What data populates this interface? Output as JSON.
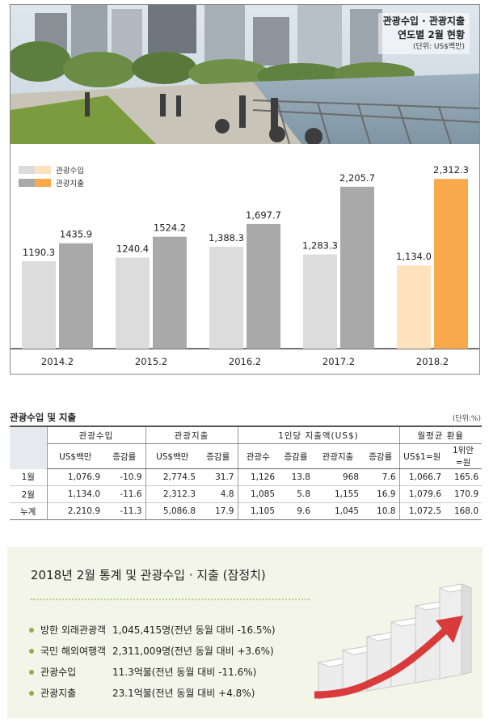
{
  "chart_panel": {
    "title_line1": "관광수입 · 관광지출",
    "title_line2": "연도별 2월 현황",
    "unit": "(단위: US$백만)"
  },
  "chart_data": {
    "type": "bar",
    "title": "관광수입 · 관광지출 연도별 2월 현황",
    "unit": "(단위: US$백만)",
    "categories": [
      "2014.2",
      "2015.2",
      "2016.2",
      "2017.2",
      "2018.2"
    ],
    "series": [
      {
        "name": "관광수입",
        "values": [
          1190.3,
          1240.4,
          1388.3,
          1283.3,
          1134.0
        ],
        "labels": [
          "1190.3",
          "1240.4",
          "1,388.3",
          "1,283.3",
          "1,134.0"
        ]
      },
      {
        "name": "관광지출",
        "values": [
          1435.9,
          1524.2,
          1697.7,
          2205.7,
          2312.3
        ],
        "labels": [
          "1435.9",
          "1524.2",
          "1,697.7",
          "2,205.7",
          "2,312.3"
        ]
      }
    ],
    "ylim": [
      0,
      2700
    ],
    "grid": false,
    "legend": "top-left",
    "colors": {
      "income": "#dcdcdc",
      "expense": "#a9a9a9",
      "income_highlight": "#fde2bd",
      "expense_highlight": "#f7a94b"
    }
  },
  "table": {
    "title": "관광수입 및 지출",
    "unit": "(단위:%)",
    "group_headers": [
      "관광수입",
      "관광지출",
      "1인당 지출액(US$)",
      "월평균 환율"
    ],
    "sub_headers": [
      "US$백만",
      "증감률",
      "US$백만",
      "증감률",
      "관광수",
      "증감률",
      "관광지출",
      "증감률",
      "US$1=원",
      "1위안 =원"
    ],
    "rows": [
      {
        "label": "1월",
        "cells": [
          "1,076.9",
          "-10.9",
          "2,774.5",
          "31.7",
          "1,126",
          "13.8",
          "968",
          "7.6",
          "1,066.7",
          "165.6"
        ]
      },
      {
        "label": "2월",
        "cells": [
          "1,134.0",
          "-11.6",
          "2,312.3",
          "4.8",
          "1,085",
          "5.8",
          "1,155",
          "16.9",
          "1,079.6",
          "170.9"
        ]
      },
      {
        "label": "누계",
        "cells": [
          "2,210.9",
          "-11.3",
          "5,086.8",
          "17.9",
          "1,105",
          "9.6",
          "1,045",
          "10.8",
          "1,072.5",
          "168.0"
        ]
      }
    ]
  },
  "summary": {
    "title": "2018년 2월 통계 및 관광수입 · 지출 (잠정치)",
    "items": [
      {
        "label": "방한 외래관광객",
        "value": "1,045,415명(전년 동월 대비 -16.5%)"
      },
      {
        "label": "국민 해외여행객",
        "value": "2,311,009명(전년 동월 대비 +3.6%)"
      },
      {
        "label": "관광수입",
        "value": "11.3억불(전년 동월 대비 -11.6%)"
      },
      {
        "label": "관광지출",
        "value": "23.1억불(전년 동월 대비 +4.8%)"
      }
    ],
    "bullet_color": "#8db04a"
  }
}
